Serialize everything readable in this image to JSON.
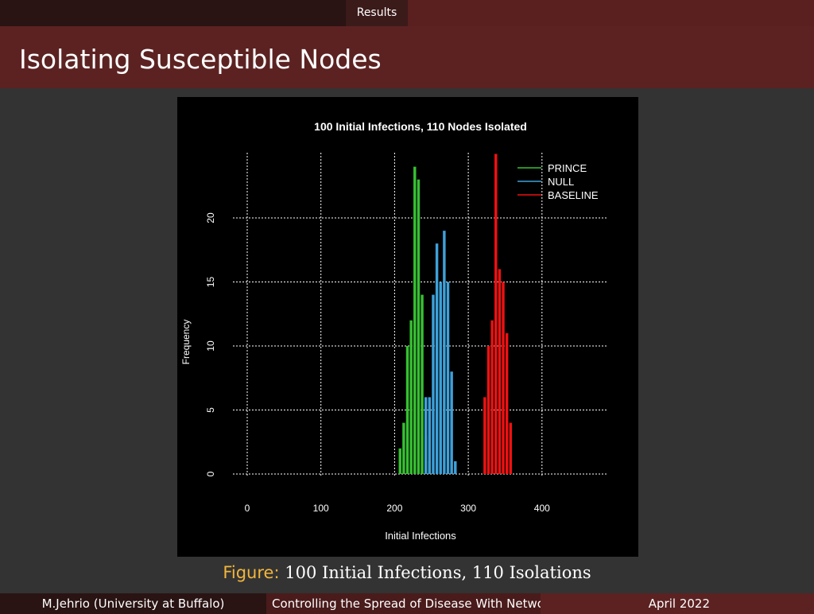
{
  "header": {
    "section": "Results"
  },
  "slide": {
    "title": "Isolating Susceptible Nodes"
  },
  "figure": {
    "label": "Figure:",
    "caption": "100 Initial Infections, 110 Isolations"
  },
  "footer": {
    "author": "M.Jehrio  (University at Buffalo)",
    "talk_title": "Controlling the Spread of Disease With Network",
    "date": "April 2022"
  },
  "chart_data": {
    "type": "bar",
    "title": "100  Initial Infections,  110 Nodes Isolated",
    "xlabel": "Initial Infections",
    "ylabel": "Frequency",
    "xlim": [
      0,
      480
    ],
    "ylim": [
      0,
      25
    ],
    "xticks": [
      0,
      100,
      200,
      300,
      400
    ],
    "yticks": [
      0,
      5,
      10,
      15,
      20
    ],
    "grid": true,
    "legend": "top-right",
    "background": "#000000",
    "bin_width": 5,
    "series": [
      {
        "name": "PRINCE",
        "color": "#37c032",
        "x": [
          205,
          210,
          215,
          220,
          225,
          230,
          235,
          240,
          245
        ],
        "values": [
          2,
          4,
          10,
          12,
          24,
          23,
          14,
          3,
          1
        ]
      },
      {
        "name": "NULL",
        "color": "#3ea1d9",
        "x": [
          240,
          245,
          250,
          255,
          260,
          265,
          270,
          275,
          280
        ],
        "values": [
          6,
          6,
          14,
          18,
          15,
          19,
          15,
          8,
          1
        ]
      },
      {
        "name": "BASELINE",
        "color": "#ee1111",
        "x": [
          320,
          325,
          330,
          335,
          340,
          345,
          350,
          355
        ],
        "values": [
          6,
          10,
          12,
          25,
          16,
          15,
          11,
          4
        ]
      }
    ]
  }
}
